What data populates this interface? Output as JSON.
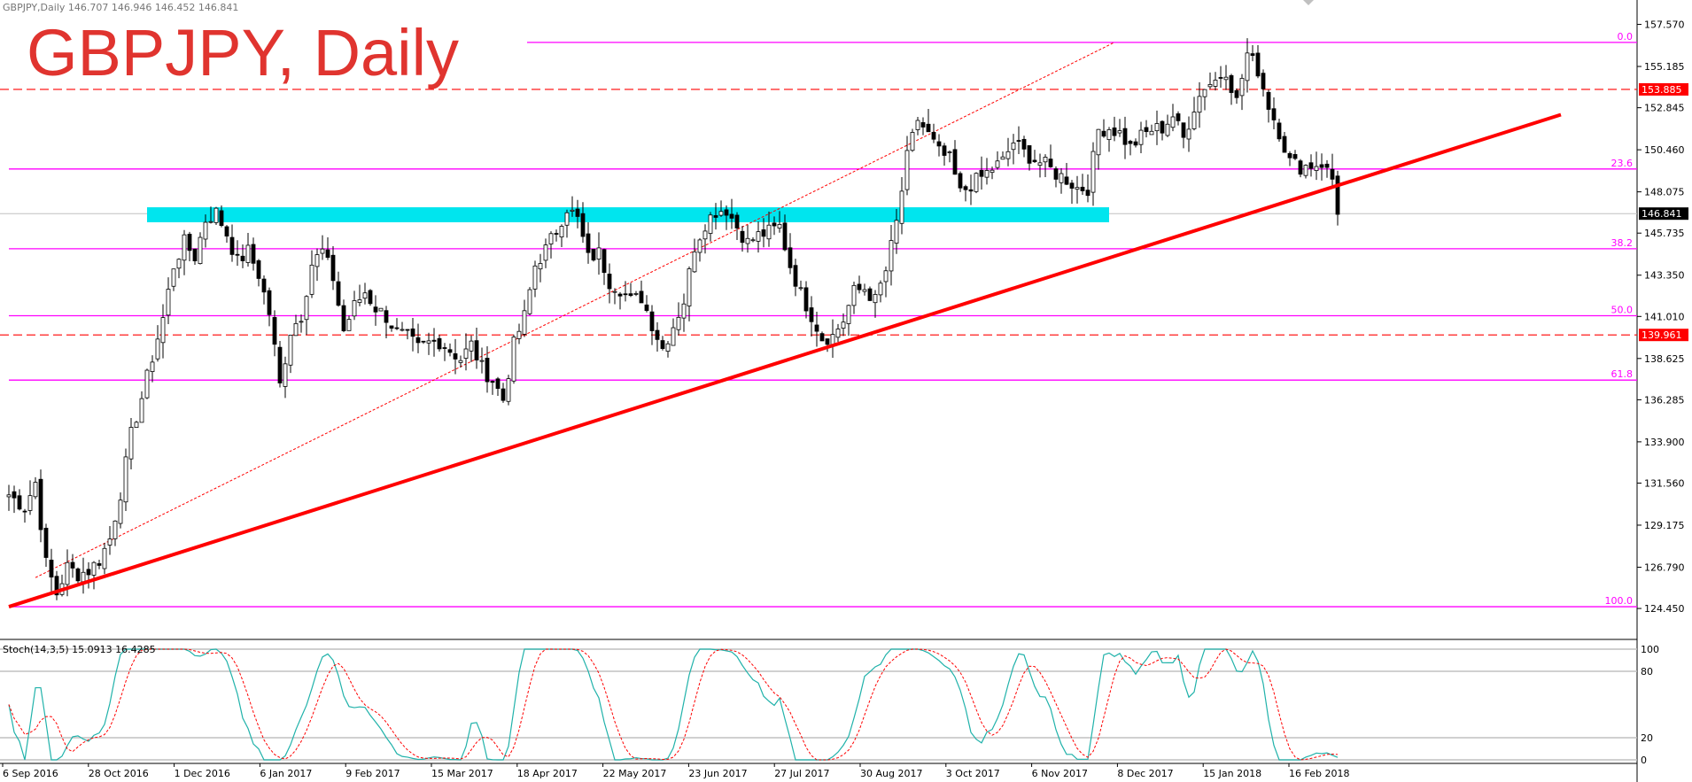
{
  "header": {
    "symbol_info": "GBPJPY,Daily  146.707 146.946 146.452 146.841",
    "title": "GBPJPY, Daily"
  },
  "colors": {
    "background": "#ffffff",
    "fib_line": "#ff00ff",
    "trendline": "#ff0000",
    "zone": "#00e5ee",
    "dashed_level": "#ff0000",
    "stoch_main": "#20b2aa",
    "stoch_signal": "#ff0000",
    "candle_up": "#000000",
    "candle_down": "#000000"
  },
  "chart_data": {
    "type": "candlestick",
    "price_axis": {
      "ticks": [
        "157.570",
        "155.185",
        "152.845",
        "150.460",
        "148.075",
        "145.735",
        "143.350",
        "141.010",
        "138.625",
        "136.285",
        "133.900",
        "131.560",
        "129.175",
        "126.790",
        "124.450"
      ],
      "ylim": [
        123.7,
        158.2
      ]
    },
    "date_axis": {
      "ticks": [
        "6 Sep 2016",
        "28 Oct 2016",
        "1 Dec 2016",
        "6 Jan 2017",
        "9 Feb 2017",
        "15 Mar 2017",
        "18 Apr 2017",
        "22 May 2017",
        "23 Jun 2017",
        "27 Jul 2017",
        "30 Aug 2017",
        "3 Oct 2017",
        "6 Nov 2017",
        "8 Dec 2017",
        "15 Jan 2018",
        "16 Feb 2018"
      ]
    },
    "price_path": [
      [
        0,
        130.9
      ],
      [
        3,
        130.2
      ],
      [
        5,
        131.6
      ],
      [
        7,
        127.0
      ],
      [
        9,
        125.3
      ],
      [
        11,
        126.8
      ],
      [
        13,
        126.4
      ],
      [
        15,
        126.6
      ],
      [
        17,
        127.2
      ],
      [
        19,
        128.4
      ],
      [
        21,
        131.0
      ],
      [
        23,
        134.3
      ],
      [
        25,
        136.4
      ],
      [
        27,
        138.7
      ],
      [
        29,
        140.9
      ],
      [
        31,
        143.9
      ],
      [
        33,
        145.2
      ],
      [
        35,
        144.4
      ],
      [
        37,
        146.5
      ],
      [
        39,
        146.9
      ],
      [
        41,
        145.7
      ],
      [
        43,
        144.1
      ],
      [
        45,
        144.7
      ],
      [
        47,
        143.4
      ],
      [
        49,
        141.2
      ],
      [
        50,
        139.2
      ],
      [
        51,
        137.1
      ],
      [
        53,
        140.2
      ],
      [
        55,
        141.1
      ],
      [
        57,
        144.0
      ],
      [
        59,
        144.7
      ],
      [
        61,
        143.2
      ],
      [
        63,
        140.2
      ],
      [
        65,
        141.6
      ],
      [
        67,
        142.4
      ],
      [
        69,
        141.5
      ],
      [
        71,
        141.0
      ],
      [
        73,
        140.1
      ],
      [
        75,
        139.8
      ],
      [
        77,
        139.2
      ],
      [
        79,
        139.5
      ],
      [
        81,
        139.6
      ],
      [
        83,
        139.1
      ],
      [
        85,
        138.6
      ],
      [
        87,
        139.4
      ],
      [
        89,
        138.1
      ],
      [
        91,
        137.4
      ],
      [
        93,
        136.3
      ],
      [
        95,
        139.4
      ],
      [
        97,
        141.0
      ],
      [
        99,
        143.9
      ],
      [
        101,
        144.8
      ],
      [
        103,
        145.9
      ],
      [
        105,
        147.2
      ],
      [
        107,
        146.5
      ],
      [
        109,
        144.3
      ],
      [
        111,
        144.6
      ],
      [
        113,
        143.0
      ],
      [
        115,
        142.6
      ],
      [
        117,
        141.9
      ],
      [
        119,
        142.1
      ],
      [
        121,
        140.6
      ],
      [
        123,
        139.2
      ],
      [
        125,
        140.5
      ],
      [
        127,
        141.9
      ],
      [
        129,
        145.0
      ],
      [
        131,
        146.3
      ],
      [
        133,
        147.0
      ],
      [
        135,
        147.1
      ],
      [
        137,
        146.1
      ],
      [
        139,
        145.2
      ],
      [
        141,
        145.6
      ],
      [
        143,
        145.8
      ],
      [
        145,
        146.1
      ],
      [
        147,
        143.9
      ],
      [
        149,
        142.3
      ],
      [
        151,
        141.1
      ],
      [
        153,
        139.8
      ],
      [
        155,
        139.9
      ],
      [
        157,
        140.8
      ],
      [
        159,
        142.4
      ],
      [
        161,
        142.6
      ],
      [
        163,
        141.9
      ],
      [
        165,
        143.6
      ],
      [
        167,
        146.3
      ],
      [
        169,
        150.0
      ],
      [
        171,
        152.2
      ],
      [
        173,
        151.3
      ],
      [
        175,
        150.3
      ],
      [
        177,
        149.9
      ],
      [
        179,
        148.0
      ],
      [
        181,
        148.5
      ],
      [
        183,
        148.9
      ],
      [
        185,
        149.4
      ],
      [
        187,
        149.8
      ],
      [
        189,
        150.9
      ],
      [
        191,
        150.3
      ],
      [
        193,
        149.9
      ],
      [
        195,
        149.6
      ],
      [
        197,
        149.1
      ],
      [
        199,
        148.8
      ],
      [
        201,
        148.3
      ],
      [
        203,
        148.3
      ],
      [
        205,
        151.6
      ],
      [
        207,
        151.7
      ],
      [
        209,
        151.4
      ],
      [
        211,
        150.6
      ],
      [
        213,
        151.2
      ],
      [
        215,
        151.6
      ],
      [
        217,
        151.7
      ],
      [
        219,
        152.4
      ],
      [
        221,
        151.1
      ],
      [
        223,
        152.9
      ],
      [
        225,
        154.1
      ],
      [
        227,
        154.4
      ],
      [
        229,
        155.0
      ],
      [
        231,
        153.2
      ],
      [
        233,
        155.9
      ],
      [
        235,
        155.0
      ],
      [
        237,
        153.0
      ],
      [
        239,
        151.5
      ],
      [
        241,
        149.8
      ],
      [
        243,
        149.5
      ],
      [
        245,
        149.6
      ],
      [
        247,
        149.7
      ],
      [
        249,
        148.8
      ],
      [
        250,
        146.8
      ]
    ],
    "levels": {
      "fib_0": 156.55,
      "fib_23_6": 149.37,
      "fib_38_2": 144.85,
      "fib_50_0": 141.05,
      "fib_61_8": 137.4,
      "fib_100": 124.55,
      "dashed_upper": 153.885,
      "dashed_lower": 139.961,
      "zone_top": 147.2,
      "zone_bottom": 146.35,
      "current": 146.841
    },
    "level_labels": {
      "fib_0": "0.0",
      "fib_23_6": "23.6",
      "fib_38_2": "38.2",
      "fib_50_0": "50.0",
      "fib_61_8": "61.8",
      "fib_100": "100.0",
      "dashed_upper": "153.885",
      "dashed_lower": "139.961",
      "current": "146.841"
    },
    "trendline": {
      "from": [
        0,
        124.55
      ],
      "to": [
        292,
        152.45
      ]
    },
    "channel_line": {
      "from": [
        5,
        126.2
      ],
      "to": [
        208,
        156.55
      ]
    },
    "stochastic": {
      "label": "Stoch(14,3,5) 15.0913 16.4285",
      "ticks": [
        "100",
        "80",
        "20",
        "0"
      ],
      "levels": [
        100,
        80,
        20,
        0
      ]
    }
  }
}
